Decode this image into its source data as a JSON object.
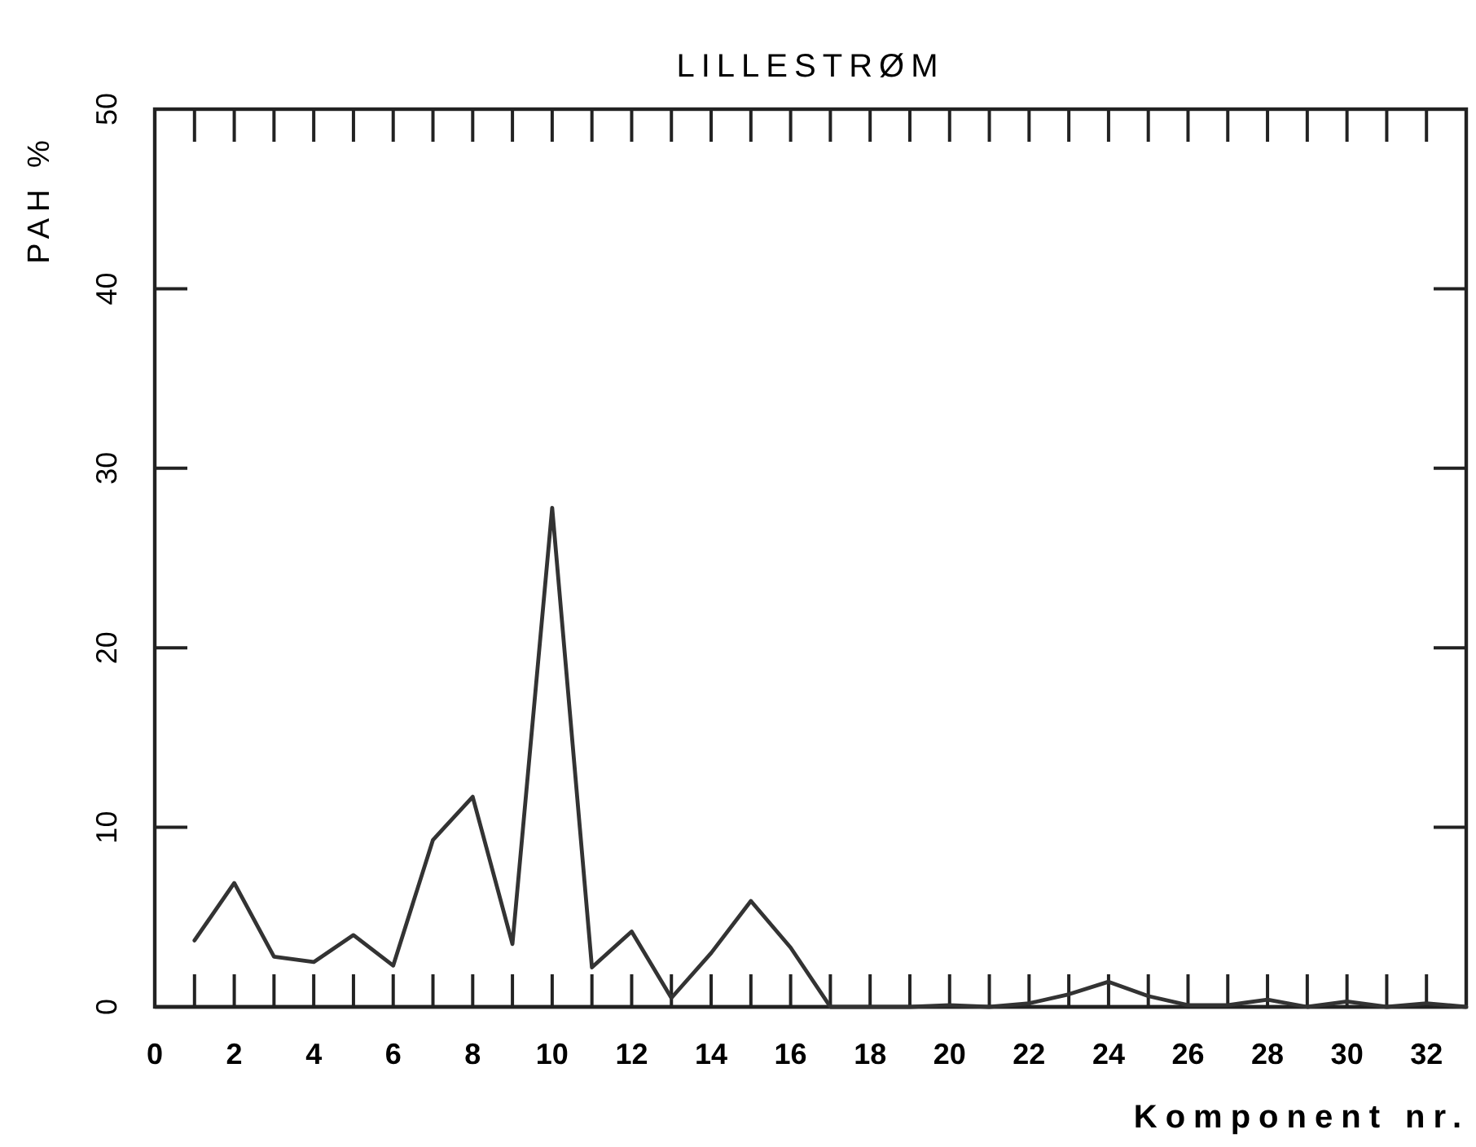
{
  "chart_data": {
    "type": "line",
    "title": "LILLESTRØM",
    "xlabel": "Komponent nr.",
    "ylabel": "PAH %",
    "x": [
      1,
      2,
      3,
      4,
      5,
      6,
      7,
      8,
      9,
      10,
      11,
      12,
      13,
      14,
      15,
      16,
      17,
      18,
      19,
      20,
      21,
      22,
      23,
      24,
      25,
      26,
      27,
      28,
      29,
      30,
      31,
      32,
      33
    ],
    "series": [
      {
        "color": "#333333",
        "values": [
          3.7,
          6.9,
          2.8,
          2.5,
          4.0,
          2.3,
          9.3,
          11.7,
          3.5,
          27.8,
          2.2,
          4.2,
          0.5,
          3.0,
          5.9,
          3.3,
          0,
          0,
          0,
          0.1,
          0,
          0.2,
          0.7,
          1.4,
          0.6,
          0.1,
          0.1,
          0.4,
          0,
          0.3,
          0,
          0.2,
          0
        ]
      }
    ],
    "xlim": [
      0,
      33
    ],
    "xticks": [
      0,
      2,
      4,
      6,
      8,
      10,
      12,
      14,
      16,
      18,
      20,
      22,
      24,
      26,
      28,
      30,
      32
    ],
    "ylim": [
      0,
      50
    ],
    "yticks": [
      0,
      10,
      20,
      30,
      40,
      50
    ],
    "grid": false,
    "legend": false,
    "marker": "none",
    "line_style": "solid"
  }
}
